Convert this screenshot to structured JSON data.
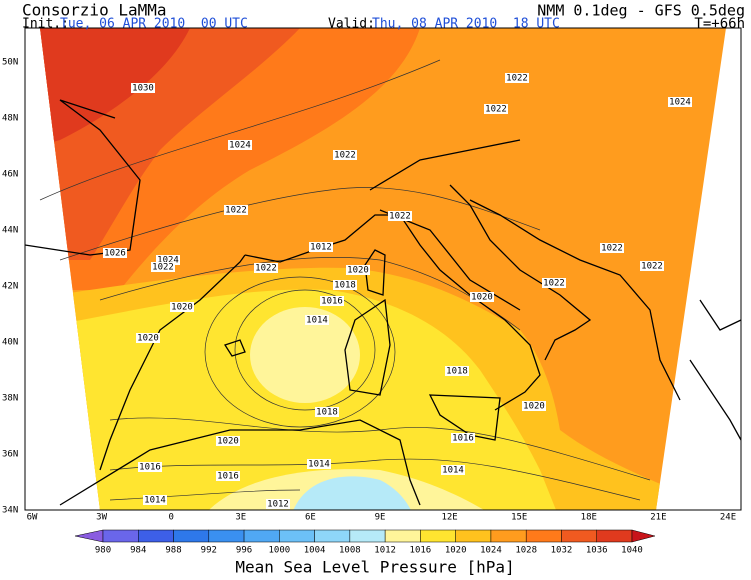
{
  "header": {
    "org": "Consorzio LaMMa",
    "init_label": "Init.:",
    "init_value": "Tue, 06 APR 2010  00 UTC",
    "valid_label": "Valid:",
    "valid_value": "Thu, 08 APR 2010  18 UTC",
    "model": "NMM 0.1deg - GFS 0.5deg",
    "lead": "T=+66h"
  },
  "lon_labels": [
    "6W",
    "3W",
    "0",
    "3E",
    "6E",
    "9E",
    "12E",
    "15E",
    "18E",
    "21E",
    "24E"
  ],
  "lat_labels": [
    "50N",
    "48N",
    "46N",
    "44N",
    "42N",
    "40N",
    "38N",
    "36N",
    "34N"
  ],
  "contour_labels": [
    "1030",
    "1022",
    "1022",
    "1024",
    "1024",
    "1022",
    "1022",
    "1022",
    "1012",
    "1026",
    "1024",
    "1022",
    "1022",
    "1020",
    "1018",
    "1016",
    "1014",
    "1020",
    "1020",
    "1022",
    "1022",
    "1022",
    "1020",
    "1018",
    "1018",
    "1020",
    "1020",
    "1016",
    "1016",
    "1016",
    "1014",
    "1014",
    "1014",
    "1012"
  ],
  "colorbar": {
    "ticks": [
      980,
      984,
      988,
      992,
      996,
      1000,
      1004,
      1008,
      1012,
      1016,
      1020,
      1024,
      1028,
      1032,
      1036,
      1040
    ],
    "colors": [
      "#8a5ce0",
      "#6a66ea",
      "#3d5fe8",
      "#2e78ea",
      "#3a90f0",
      "#50a8f4",
      "#6cc0f7",
      "#8ed6f9",
      "#b6eaf8",
      "#fff59a",
      "#ffe530",
      "#ffc21e",
      "#ff9c1e",
      "#ff7a1a",
      "#f05a20",
      "#e03a1e",
      "#c8141a"
    ]
  },
  "title": "Mean Sea Level Pressure [hPa]"
}
